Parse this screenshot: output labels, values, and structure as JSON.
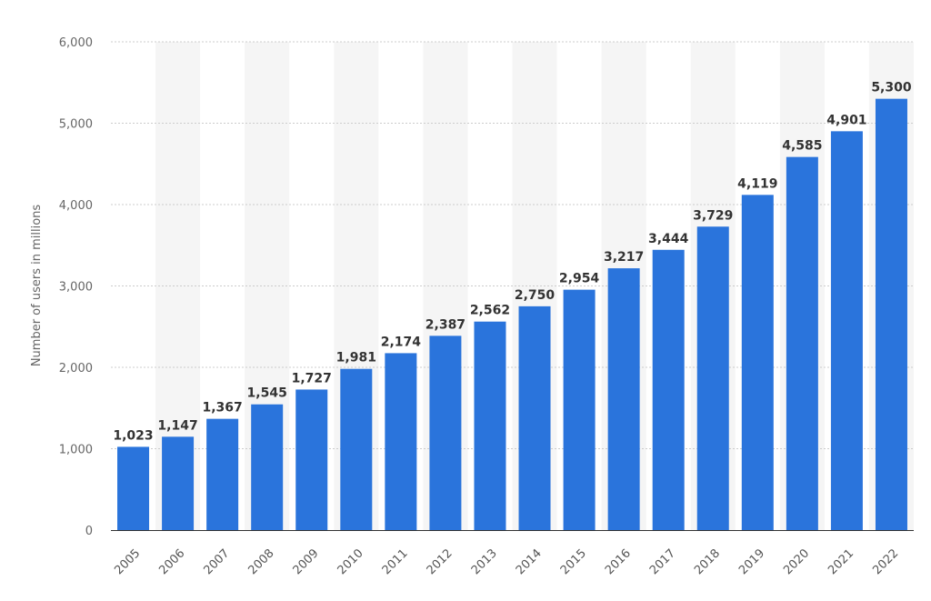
{
  "chart_data": {
    "type": "bar",
    "title": "",
    "xlabel": "",
    "ylabel": "Number of users in millions",
    "categories": [
      "2005",
      "2006",
      "2007",
      "2008",
      "2009",
      "2010",
      "2011",
      "2012",
      "2013",
      "2014",
      "2015",
      "2016",
      "2017",
      "2018",
      "2019",
      "2020",
      "2021",
      "2022"
    ],
    "values": [
      1023,
      1147,
      1367,
      1545,
      1727,
      1981,
      2174,
      2387,
      2562,
      2750,
      2954,
      3217,
      3444,
      3729,
      4119,
      4585,
      4901,
      5300
    ],
    "data_labels": [
      "1,023",
      "1,147",
      "1,367",
      "1,545",
      "1,727",
      "1,981",
      "2,174",
      "2,387",
      "2,562",
      "2,750",
      "2,954",
      "3,217",
      "3,444",
      "3,729",
      "4,119",
      "4,585",
      "4,901",
      "5,300"
    ],
    "y_ticks": [
      0,
      1000,
      2000,
      3000,
      4000,
      5000,
      6000
    ],
    "y_tick_labels": [
      "0",
      "1,000",
      "2,000",
      "3,000",
      "4,000",
      "5,000",
      "6,000"
    ],
    "ylim": [
      0,
      6000
    ],
    "grid": true,
    "legend": "none",
    "colors": {
      "bar": "#2a74dc",
      "band": "#f5f5f5",
      "grid": "#cccccc",
      "axis": "#333333"
    }
  }
}
